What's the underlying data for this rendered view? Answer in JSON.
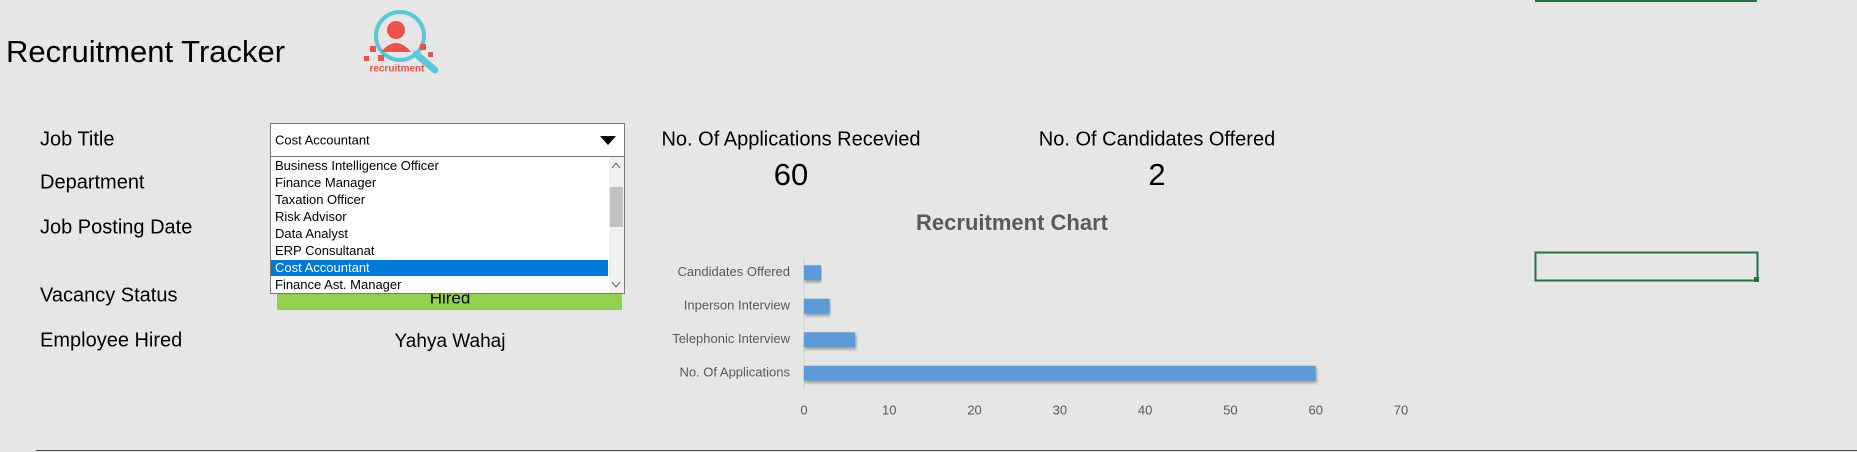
{
  "header": {
    "title": "Recruitment Tracker",
    "logo_text": "recruitment"
  },
  "form": {
    "labels": [
      "Job Title",
      "Department",
      "Job Posting Date",
      "Vacancy Status",
      "Employee Hired"
    ],
    "job_title": "Cost Accountant",
    "dropdown_options": [
      "Business Intelligence Officer",
      "Finance Manager",
      "Taxation Officer",
      "Risk Advisor",
      "Data Analyst",
      "ERP Consultanat",
      "Cost Accountant",
      "Finance Ast. Manager"
    ],
    "vacancy_status": "Hired",
    "employee_hired": "Yahya Wahaj"
  },
  "kpis": [
    {
      "label": "No. Of Applications Recevied",
      "value": 60
    },
    {
      "label": "No. Of Candidates Offered",
      "value": 2
    }
  ],
  "chart_data": {
    "type": "bar",
    "orientation": "horizontal",
    "title": "Recruitment Chart",
    "categories": [
      "No. Of Applications",
      "Telephonic Interview",
      "Inperson Interview",
      "Candidates Offered"
    ],
    "values": [
      60,
      6,
      3,
      2
    ],
    "color": "#5b9bd5",
    "xlim": [
      0,
      70
    ],
    "xticks": [
      0,
      10,
      20,
      30,
      40,
      50,
      60,
      70
    ],
    "grid": false
  }
}
